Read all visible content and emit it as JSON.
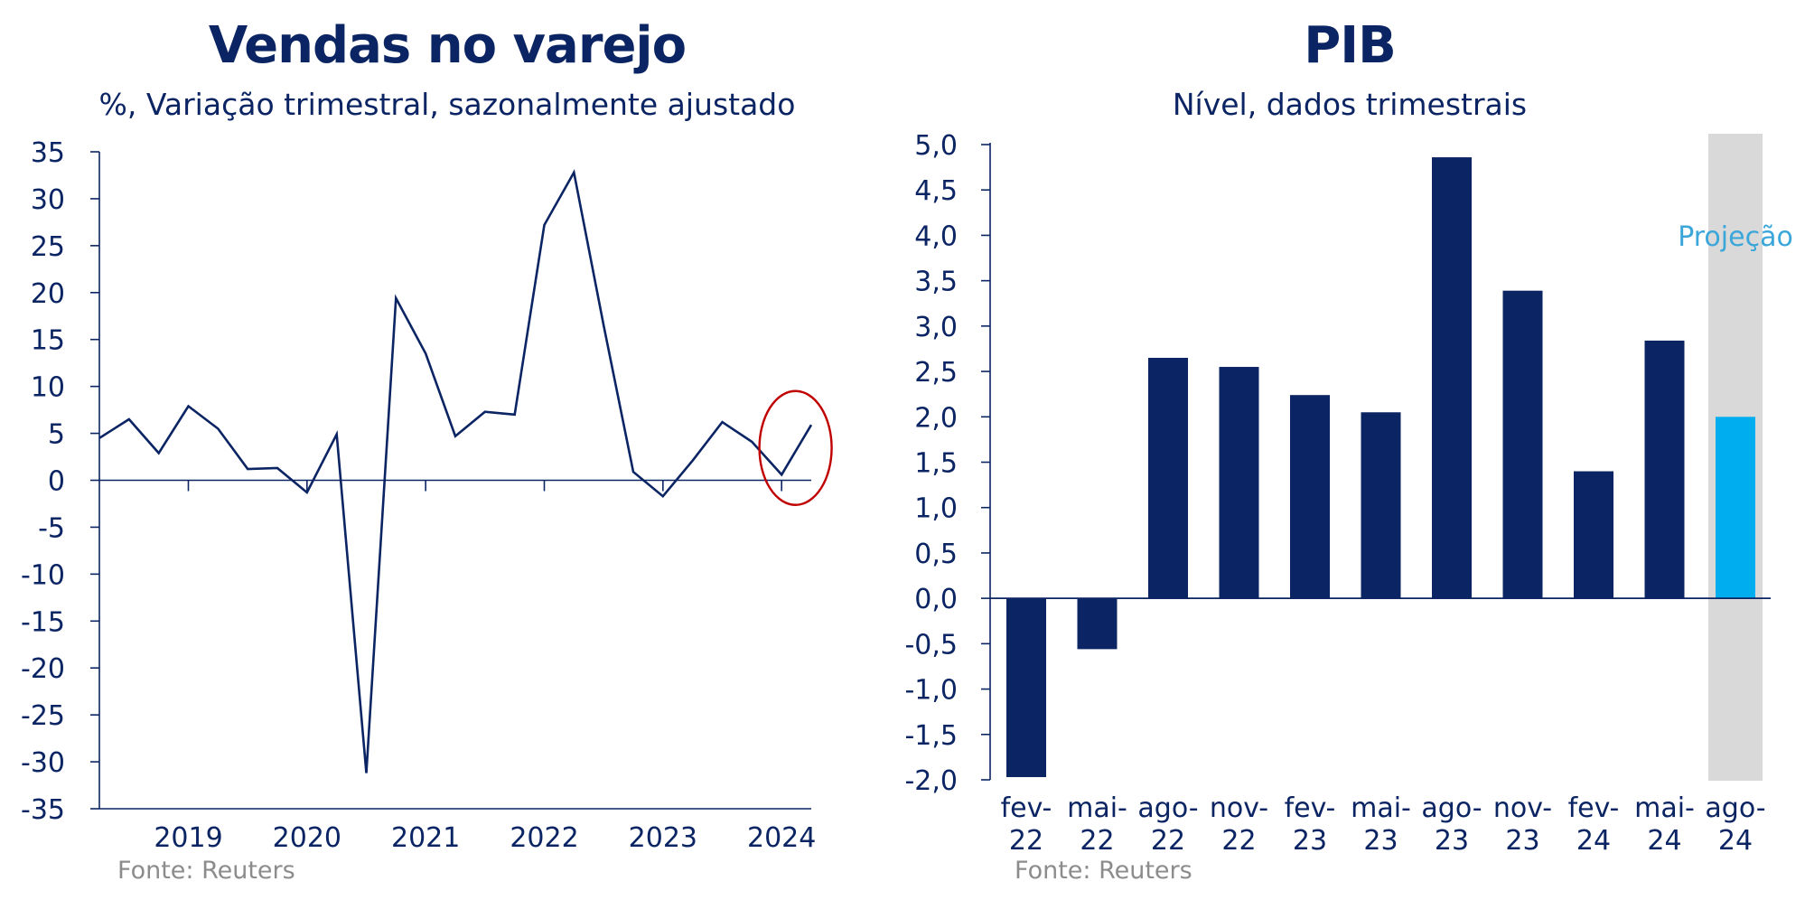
{
  "colors": {
    "navy": "#0b2463",
    "projection_bar": "#00adef",
    "projection_shade": "#d9d9d9",
    "projection_label": "#3aa6d9",
    "highlight_circle": "#c00000",
    "source_text": "#8c8c8c"
  },
  "left_chart": {
    "title": "Vendas no varejo",
    "subtitle": "%, Variação trimestral, sazonalmente ajustado",
    "source": "Fonte: Reuters"
  },
  "right_chart": {
    "title": "PIB",
    "subtitle": "Nível, dados trimestrais",
    "source": "Fonte: Reuters"
  },
  "chart_data": [
    {
      "type": "line",
      "title": "Vendas no varejo",
      "subtitle": "%, Variação trimestral, sazonalmente ajustado",
      "ylim": [
        -35,
        35
      ],
      "yticks": [
        35,
        30,
        25,
        20,
        15,
        10,
        5,
        0,
        -5,
        -10,
        -15,
        -20,
        -25,
        -30,
        -35
      ],
      "x_tick_labels": [
        "2019",
        "2020",
        "2021",
        "2022",
        "2023",
        "2024"
      ],
      "x_range": [
        "2018-Q2",
        "2024-Q2"
      ],
      "series": [
        {
          "x": [
            "2018-Q2",
            "2018-Q3",
            "2018-Q4",
            "2019-Q1",
            "2019-Q2",
            "2019-Q3",
            "2019-Q4",
            "2020-Q1",
            "2020-Q2",
            "2020-Q3",
            "2020-Q4",
            "2021-Q1",
            "2021-Q2",
            "2021-Q3",
            "2021-Q4",
            "2022-Q1",
            "2022-Q2",
            "2022-Q3",
            "2022-Q4",
            "2023-Q1",
            "2023-Q2",
            "2023-Q3",
            "2023-Q4",
            "2024-Q1",
            "2024-Q2"
          ],
          "values": [
            4.5,
            6.5,
            2.9,
            7.9,
            5.5,
            1.2,
            1.3,
            -1.3,
            4.9,
            -31.2,
            19.4,
            13.5,
            4.7,
            7.3,
            7.0,
            27.2,
            32.8,
            16.5,
            0.9,
            -1.7,
            2.1,
            6.2,
            4.1,
            0.6,
            5.9
          ]
        }
      ],
      "annotation": "highlight circle around last two points",
      "grid": false
    },
    {
      "type": "bar",
      "title": "PIB",
      "subtitle": "Nível, dados trimestrais",
      "ylim": [
        -2.0,
        5.0
      ],
      "yticks": [
        "5,0",
        "4,5",
        "4,0",
        "3,5",
        "3,0",
        "2,5",
        "2,0",
        "1,5",
        "1,0",
        "0,5",
        "0,0",
        "-0,5",
        "-1,0",
        "-1,5",
        "-2,0"
      ],
      "categories": [
        [
          "fev-",
          "22"
        ],
        [
          "mai-",
          "22"
        ],
        [
          "ago-",
          "22"
        ],
        [
          "nov-",
          "22"
        ],
        [
          "fev-",
          "23"
        ],
        [
          "mai-",
          "23"
        ],
        [
          "ago-",
          "23"
        ],
        [
          "nov-",
          "23"
        ],
        [
          "fev-",
          "24"
        ],
        [
          "mai-",
          "24"
        ],
        [
          "ago-",
          "24"
        ]
      ],
      "values": [
        -1.97,
        -0.56,
        2.65,
        2.55,
        2.24,
        2.05,
        4.86,
        3.39,
        1.4,
        2.84,
        2.0
      ],
      "projection_index": 10,
      "projection_label": "Projeção",
      "grid": false
    }
  ]
}
